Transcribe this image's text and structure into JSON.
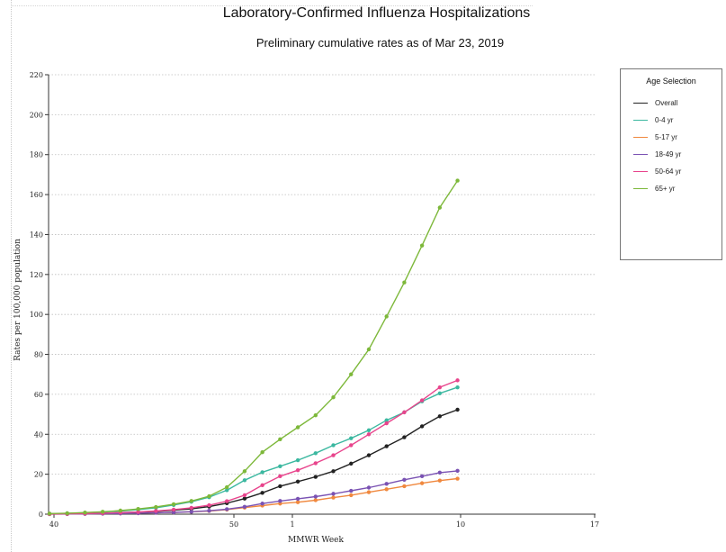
{
  "chart_data": {
    "type": "line",
    "title": "Laboratory-Confirmed Influenza Hospitalizations",
    "subtitle": "Preliminary cumulative rates as of Mar 23, 2019",
    "xlabel": "MMWR Week",
    "ylabel": "Rates per 100,000 population",
    "ylim": [
      0,
      220
    ],
    "yticks": [
      0,
      20,
      40,
      60,
      80,
      100,
      120,
      140,
      160,
      180,
      200,
      220
    ],
    "xtick_labels": [
      "40",
      "50",
      "1",
      "10",
      "17"
    ],
    "grid": true,
    "legend_title": "Age Selection",
    "legend_position": "right",
    "series": [
      {
        "name": "Overall",
        "color": "#222222",
        "values": [
          0.1,
          0.2,
          0.3,
          0.5,
          0.7,
          1.0,
          1.4,
          2.0,
          2.7,
          3.8,
          5.5,
          7.8,
          10.7,
          14.0,
          16.3,
          18.7,
          21.5,
          25.3,
          29.5,
          34.0,
          38.5,
          44.0,
          49.0,
          52.3
        ]
      },
      {
        "name": "0-4 yr",
        "color": "#3bb8a0",
        "values": [
          0.2,
          0.4,
          0.7,
          1.1,
          1.6,
          2.3,
          3.2,
          4.6,
          6.2,
          8.5,
          12.0,
          17.0,
          21.0,
          24.0,
          27.0,
          30.5,
          34.5,
          38.0,
          42.0,
          47.0,
          51.0,
          56.5,
          60.5,
          63.5
        ]
      },
      {
        "name": "5-17 yr",
        "color": "#f0883e",
        "values": [
          0.05,
          0.1,
          0.2,
          0.3,
          0.4,
          0.5,
          0.7,
          0.9,
          1.2,
          1.6,
          2.3,
          3.3,
          4.3,
          5.3,
          6.0,
          7.0,
          8.3,
          9.5,
          11.0,
          12.5,
          14.0,
          15.5,
          16.8,
          17.8
        ]
      },
      {
        "name": "18-49 yr",
        "color": "#7a52b3",
        "values": [
          0.05,
          0.1,
          0.15,
          0.25,
          0.35,
          0.5,
          0.7,
          0.9,
          1.2,
          1.7,
          2.5,
          3.7,
          5.3,
          6.6,
          7.7,
          8.8,
          10.2,
          11.7,
          13.3,
          15.2,
          17.2,
          19.0,
          20.8,
          21.7
        ]
      },
      {
        "name": "50-64 yr",
        "color": "#e8448c",
        "values": [
          0.1,
          0.2,
          0.3,
          0.5,
          0.8,
          1.1,
          1.6,
          2.3,
          3.2,
          4.5,
          6.5,
          9.5,
          14.5,
          19.0,
          22.0,
          25.5,
          29.5,
          34.5,
          40.0,
          45.5,
          51.0,
          57.0,
          63.5,
          67.0
        ]
      },
      {
        "name": "65+ yr",
        "color": "#7db83a",
        "values": [
          0.3,
          0.5,
          0.8,
          1.2,
          1.8,
          2.6,
          3.6,
          5.0,
          6.6,
          9.0,
          13.5,
          21.5,
          31.0,
          37.5,
          43.5,
          49.5,
          58.5,
          70.0,
          82.5,
          99.0,
          116.0,
          134.5,
          153.5,
          167.0
        ]
      }
    ]
  }
}
